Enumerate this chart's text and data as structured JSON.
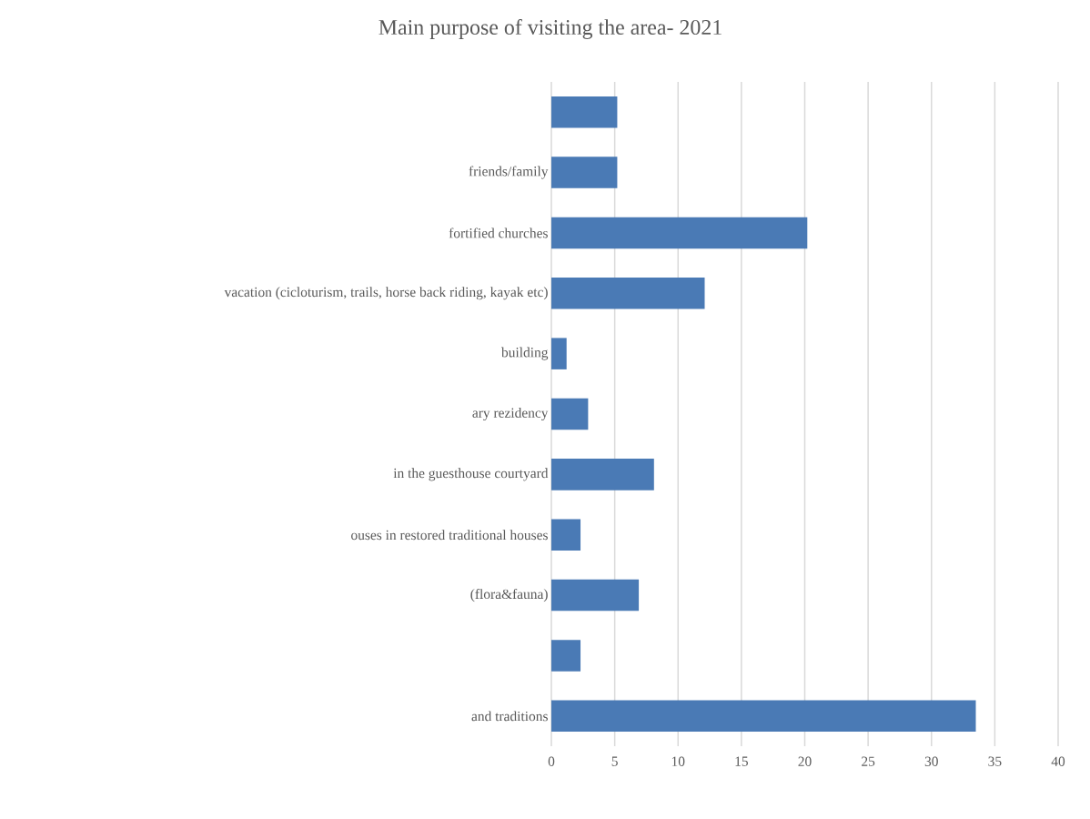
{
  "chart_data": {
    "type": "bar",
    "orientation": "horizontal",
    "title": "Main purpose of visiting the area- 2021",
    "categories": [
      null,
      "friends/family",
      "fortified churches",
      "vacation (cicloturism, trails, horse back riding, kayak etc)",
      "building",
      "ary rezidency",
      "in the guesthouse courtyard",
      "ouses in restored traditional houses",
      "(flora&fauna)",
      null,
      "and traditions"
    ],
    "values": [
      5.2,
      5.2,
      20.2,
      12.1,
      1.2,
      2.9,
      8.1,
      2.3,
      6.9,
      2.3,
      33.5
    ],
    "color": "#4a7ab5",
    "xlim": [
      0,
      40
    ],
    "xticks": [
      0,
      5,
      10,
      15,
      20,
      25,
      30,
      35,
      40
    ],
    "grid": "x"
  }
}
